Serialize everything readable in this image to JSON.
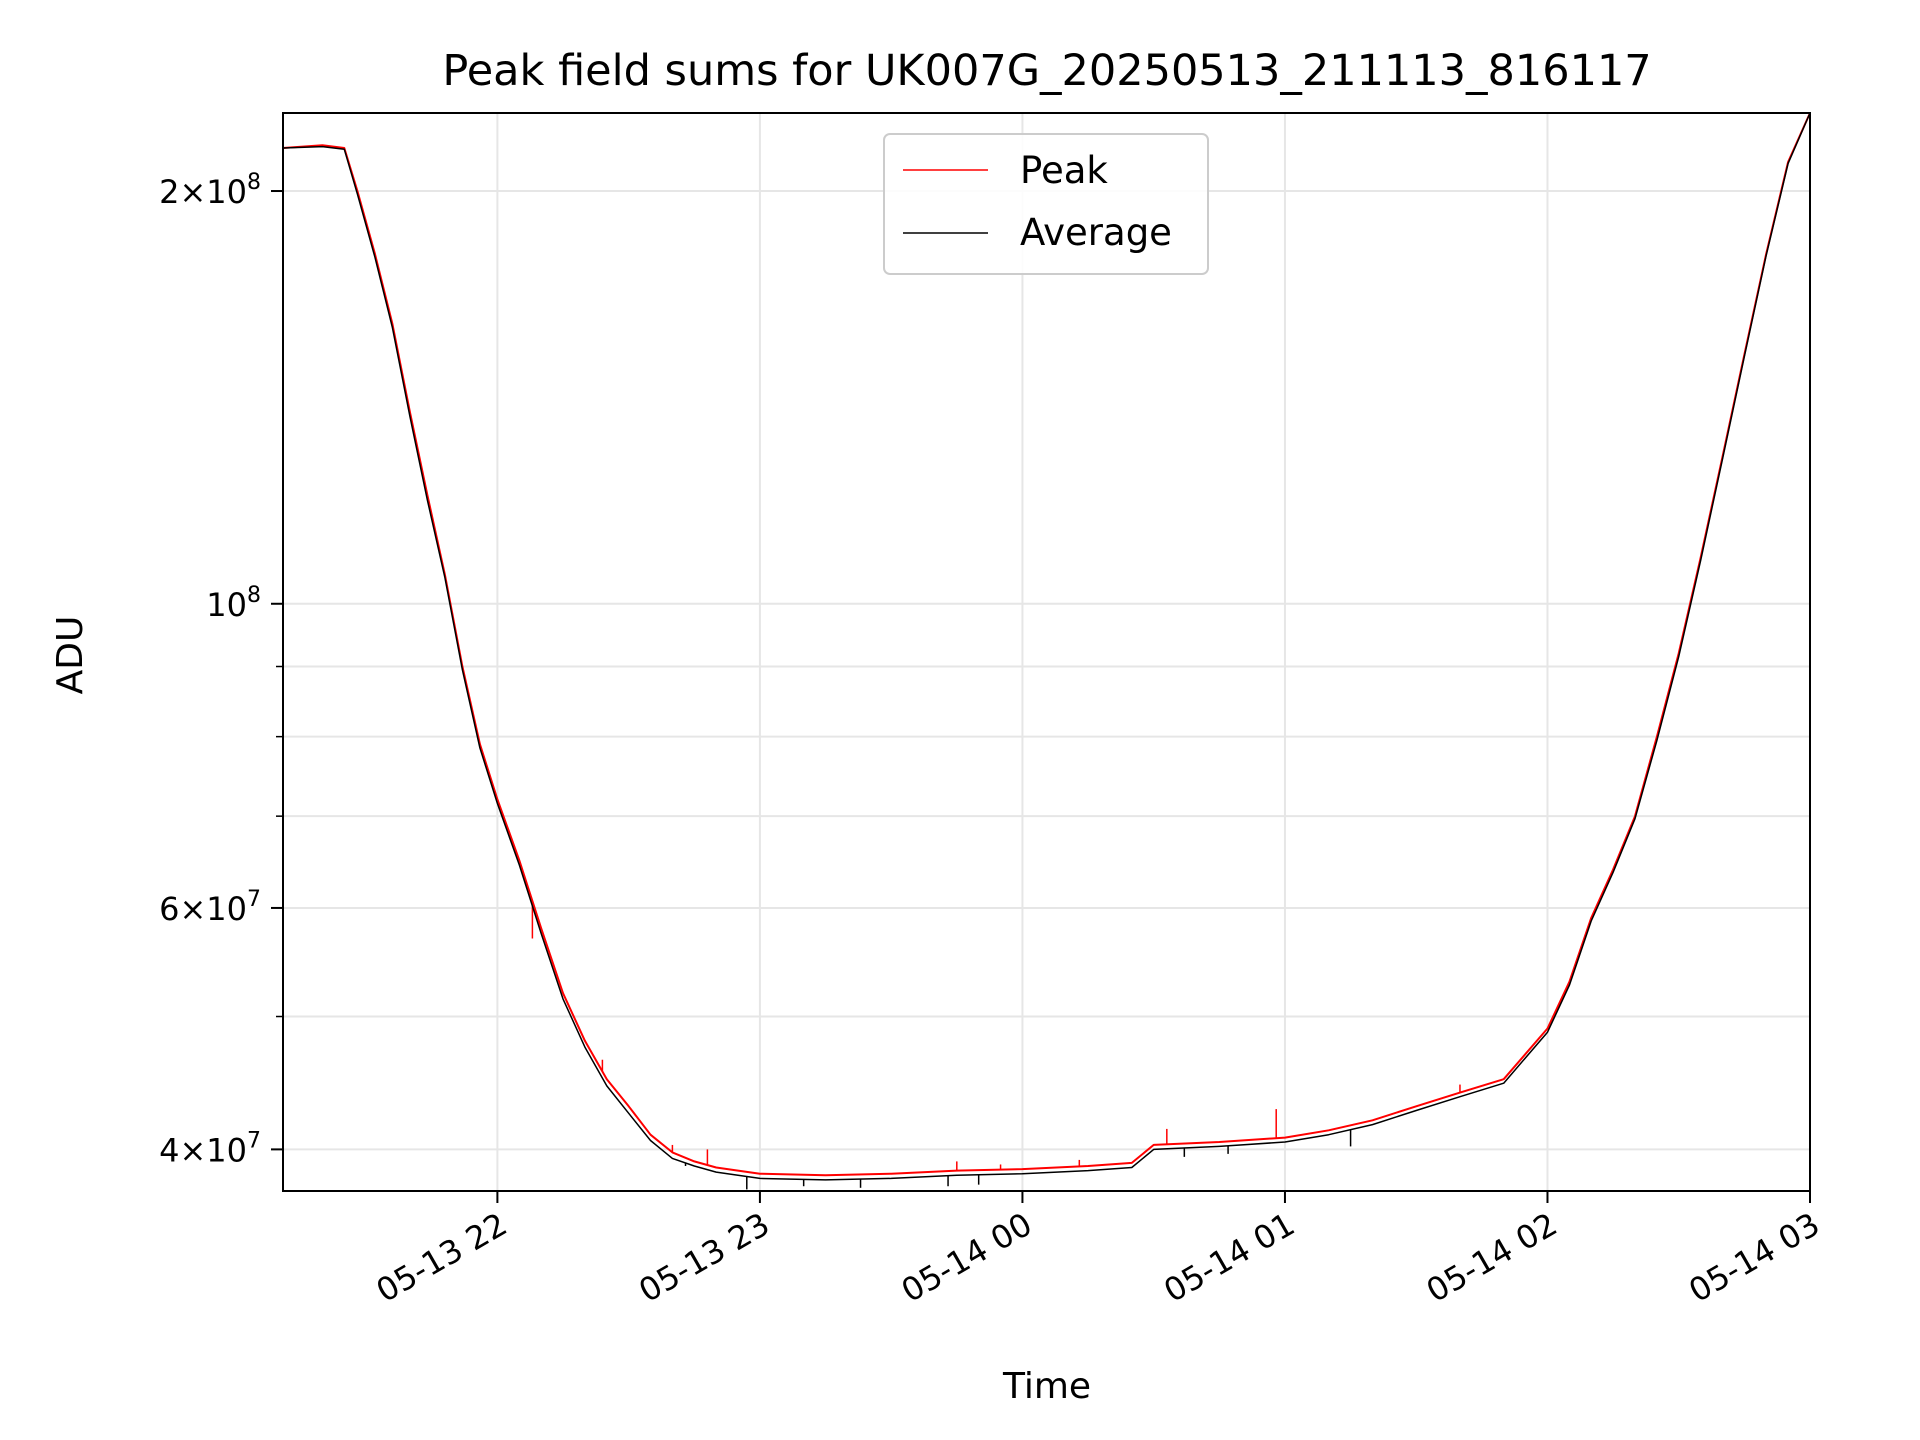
{
  "chart_data": {
    "type": "line",
    "title": "Peak field sums for UK007G_20250513_211113_816117",
    "xlabel": "Time",
    "ylabel": "ADU",
    "y_scale": "log",
    "ylim": [
      37300000,
      228000000
    ],
    "xlim": [
      "2025-05-13 21:11",
      "2025-05-14 03:00"
    ],
    "grid": true,
    "legend_position": "upper center",
    "x_ticks": [
      {
        "label": "05-13 22",
        "time": "2025-05-13 22:00"
      },
      {
        "label": "05-13 23",
        "time": "2025-05-13 23:00"
      },
      {
        "label": "05-14 00",
        "time": "2025-05-14 00:00"
      },
      {
        "label": "05-14 01",
        "time": "2025-05-14 01:00"
      },
      {
        "label": "05-14 02",
        "time": "2025-05-14 02:00"
      },
      {
        "label": "05-14 03",
        "time": "2025-05-14 03:00"
      }
    ],
    "y_major_ticks": [
      {
        "value": 40000000,
        "mantissa": "4",
        "exponent": "7"
      },
      {
        "value": 60000000,
        "mantissa": "6",
        "exponent": "7"
      },
      {
        "value": 100000000,
        "mantissa": "",
        "exponent": "8"
      },
      {
        "value": 200000000,
        "mantissa": "2",
        "exponent": "8"
      }
    ],
    "y_minor_ticks": [
      50000000,
      70000000,
      80000000,
      90000000
    ],
    "series": [
      {
        "name": "Peak",
        "color": "#ff0000",
        "x": [
          "2025-05-13 21:11",
          "2025-05-13 21:20",
          "2025-05-13 21:25",
          "2025-05-13 21:28",
          "2025-05-13 21:32",
          "2025-05-13 21:36",
          "2025-05-13 21:40",
          "2025-05-13 21:44",
          "2025-05-13 21:48",
          "2025-05-13 21:52",
          "2025-05-13 21:56",
          "2025-05-13 22:00",
          "2025-05-13 22:05",
          "2025-05-13 22:10",
          "2025-05-13 22:15",
          "2025-05-13 22:20",
          "2025-05-13 22:25",
          "2025-05-13 22:30",
          "2025-05-13 22:35",
          "2025-05-13 22:40",
          "2025-05-13 22:45",
          "2025-05-13 22:50",
          "2025-05-13 22:55",
          "2025-05-13 23:00",
          "2025-05-13 23:15",
          "2025-05-13 23:30",
          "2025-05-13 23:45",
          "2025-05-14 00:00",
          "2025-05-14 00:15",
          "2025-05-14 00:25",
          "2025-05-14 00:30",
          "2025-05-14 00:45",
          "2025-05-14 01:00",
          "2025-05-14 01:10",
          "2025-05-14 01:20",
          "2025-05-14 01:30",
          "2025-05-14 01:40",
          "2025-05-14 01:50",
          "2025-05-14 02:00",
          "2025-05-14 02:05",
          "2025-05-14 02:10",
          "2025-05-14 02:15",
          "2025-05-14 02:20",
          "2025-05-14 02:25",
          "2025-05-14 02:30",
          "2025-05-14 02:35",
          "2025-05-14 02:40",
          "2025-05-14 02:45",
          "2025-05-14 02:50",
          "2025-05-14 02:55",
          "2025-05-14 03:00"
        ],
        "y": [
          215000000,
          216000000,
          215000000,
          200000000,
          180000000,
          160000000,
          138000000,
          120000000,
          105000000,
          90000000,
          79000000,
          72000000,
          65000000,
          58000000,
          52000000,
          48000000,
          45000000,
          43000000,
          41000000,
          39800000,
          39200000,
          38800000,
          38600000,
          38400000,
          38300000,
          38400000,
          38600000,
          38700000,
          38900000,
          39100000,
          40300000,
          40500000,
          40800000,
          41300000,
          42000000,
          43000000,
          44000000,
          45000000,
          49000000,
          53000000,
          59000000,
          64000000,
          70000000,
          80000000,
          92000000,
          108000000,
          128000000,
          152000000,
          180000000,
          210000000,
          228000000
        ],
        "spikes": [
          {
            "x": "2025-05-13 22:08",
            "y": 57000000
          },
          {
            "x": "2025-05-13 22:24",
            "y": 46500000
          },
          {
            "x": "2025-05-13 22:40",
            "y": 40300000
          },
          {
            "x": "2025-05-13 22:48",
            "y": 40000000
          },
          {
            "x": "2025-05-13 23:45",
            "y": 39200000
          },
          {
            "x": "2025-05-13 23:55",
            "y": 39000000
          },
          {
            "x": "2025-05-14 00:13",
            "y": 39300000
          },
          {
            "x": "2025-05-14 00:33",
            "y": 41400000
          },
          {
            "x": "2025-05-14 00:58",
            "y": 42800000
          },
          {
            "x": "2025-05-14 01:40",
            "y": 44600000
          }
        ]
      },
      {
        "name": "Average",
        "color": "#000000",
        "x": [
          "2025-05-13 21:11",
          "2025-05-13 21:20",
          "2025-05-13 21:25",
          "2025-05-13 21:28",
          "2025-05-13 21:32",
          "2025-05-13 21:36",
          "2025-05-13 21:40",
          "2025-05-13 21:44",
          "2025-05-13 21:48",
          "2025-05-13 21:52",
          "2025-05-13 21:56",
          "2025-05-13 22:00",
          "2025-05-13 22:05",
          "2025-05-13 22:10",
          "2025-05-13 22:15",
          "2025-05-13 22:20",
          "2025-05-13 22:25",
          "2025-05-13 22:30",
          "2025-05-13 22:35",
          "2025-05-13 22:40",
          "2025-05-13 22:45",
          "2025-05-13 22:50",
          "2025-05-13 22:55",
          "2025-05-13 23:00",
          "2025-05-13 23:15",
          "2025-05-13 23:30",
          "2025-05-13 23:45",
          "2025-05-14 00:00",
          "2025-05-14 00:15",
          "2025-05-14 00:25",
          "2025-05-14 00:30",
          "2025-05-14 00:45",
          "2025-05-14 01:00",
          "2025-05-14 01:10",
          "2025-05-14 01:20",
          "2025-05-14 01:30",
          "2025-05-14 01:40",
          "2025-05-14 01:50",
          "2025-05-14 02:00",
          "2025-05-14 02:05",
          "2025-05-14 02:10",
          "2025-05-14 02:15",
          "2025-05-14 02:20",
          "2025-05-14 02:25",
          "2025-05-14 02:30",
          "2025-05-14 02:35",
          "2025-05-14 02:40",
          "2025-05-14 02:45",
          "2025-05-14 02:50",
          "2025-05-14 02:55",
          "2025-05-14 03:00"
        ],
        "y": [
          215000000,
          215500000,
          214500000,
          199000000,
          179000000,
          159000000,
          137000000,
          119000000,
          104500000,
          89500000,
          78500000,
          71500000,
          64500000,
          57500000,
          51500000,
          47500000,
          44500000,
          42500000,
          40600000,
          39400000,
          38900000,
          38500000,
          38300000,
          38100000,
          38000000,
          38100000,
          38300000,
          38400000,
          38600000,
          38800000,
          40000000,
          40200000,
          40500000,
          41000000,
          41700000,
          42700000,
          43700000,
          44700000,
          48700000,
          52700000,
          58700000,
          63700000,
          69700000,
          79500000,
          91500000,
          107500000,
          127500000,
          151500000,
          179500000,
          209500000,
          228000000
        ],
        "dips": [
          {
            "x": "2025-05-13 22:43",
            "y": 38900000
          },
          {
            "x": "2025-05-13 22:57",
            "y": 37400000
          },
          {
            "x": "2025-05-13 23:10",
            "y": 37600000
          },
          {
            "x": "2025-05-13 23:23",
            "y": 37500000
          },
          {
            "x": "2025-05-13 23:43",
            "y": 37600000
          },
          {
            "x": "2025-05-13 23:50",
            "y": 37700000
          },
          {
            "x": "2025-05-14 00:37",
            "y": 39500000
          },
          {
            "x": "2025-05-14 00:47",
            "y": 39700000
          },
          {
            "x": "2025-05-14 01:15",
            "y": 40200000
          }
        ]
      }
    ]
  }
}
